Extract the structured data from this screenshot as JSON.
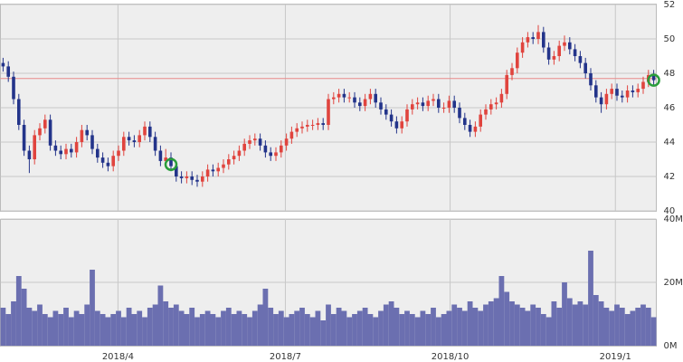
{
  "chart_data": [
    {
      "type": "candlestick",
      "xlim": [
        0,
        125
      ],
      "ylim": [
        40,
        52
      ],
      "yticks": [
        40,
        42,
        44,
        46,
        48,
        50,
        52
      ],
      "grid": true,
      "up_color": "#e0443e",
      "down_color": "#23348a",
      "open": [
        48.6,
        48.4,
        47.8,
        46.5,
        45.0,
        43.5,
        43.0,
        44.4,
        44.8,
        45.3,
        43.8,
        43.5,
        43.3,
        43.6,
        43.4,
        44.0,
        44.7,
        44.4,
        43.6,
        43.1,
        42.8,
        42.6,
        43.2,
        43.5,
        44.3,
        44.1,
        44.0,
        44.4,
        44.9,
        44.3,
        43.5,
        42.9,
        43.1,
        42.6,
        42.0,
        41.9,
        42.0,
        41.8,
        41.7,
        42.0,
        42.4,
        42.3,
        42.5,
        42.7,
        43.0,
        43.2,
        43.5,
        43.9,
        44.1,
        44.2,
        43.8,
        43.4,
        43.2,
        43.4,
        43.8,
        44.2,
        44.6,
        44.8,
        44.9,
        45.0,
        45.0,
        45.1,
        45.0,
        46.5,
        46.6,
        46.8,
        46.6,
        46.6,
        46.3,
        46.1,
        46.5,
        46.8,
        46.3,
        45.9,
        45.6,
        45.2,
        44.8,
        45.2,
        45.9,
        46.2,
        46.3,
        46.1,
        46.4,
        46.5,
        46.0,
        46.0,
        46.4,
        46.0,
        45.4,
        45.0,
        44.6,
        44.9,
        45.6,
        45.9,
        46.2,
        46.3,
        46.8,
        47.9,
        48.3,
        49.2,
        49.8,
        50.1,
        50.0,
        50.4,
        49.5,
        48.8,
        49.0,
        49.6,
        49.8,
        49.4,
        49.0,
        48.6,
        48.0,
        47.3,
        46.6,
        46.2,
        46.8,
        47.1,
        46.7,
        46.6,
        47.0,
        46.9,
        47.1,
        47.5,
        47.9
      ],
      "high": [
        48.9,
        48.7,
        48.1,
        46.8,
        45.3,
        43.8,
        44.7,
        45.1,
        45.6,
        45.6,
        44.1,
        43.8,
        43.9,
        43.9,
        44.3,
        45.0,
        45.0,
        44.7,
        43.9,
        43.4,
        43.1,
        43.5,
        43.8,
        44.6,
        44.6,
        44.4,
        44.7,
        45.2,
        45.2,
        44.6,
        43.8,
        43.6,
        43.4,
        42.9,
        42.3,
        42.3,
        42.3,
        42.1,
        42.3,
        42.7,
        42.7,
        42.8,
        43.0,
        43.3,
        43.5,
        43.8,
        44.2,
        44.4,
        44.5,
        44.5,
        44.1,
        43.7,
        43.7,
        44.1,
        44.5,
        44.9,
        45.1,
        45.2,
        45.3,
        45.3,
        45.4,
        45.4,
        46.8,
        46.9,
        47.1,
        47.1,
        46.9,
        46.9,
        46.6,
        46.8,
        47.1,
        47.1,
        46.6,
        46.2,
        45.9,
        45.5,
        45.5,
        46.2,
        46.5,
        46.6,
        46.6,
        46.7,
        46.8,
        46.8,
        46.3,
        46.7,
        46.7,
        46.3,
        45.7,
        45.3,
        45.2,
        45.9,
        46.2,
        46.5,
        46.6,
        47.1,
        48.2,
        48.6,
        49.5,
        50.1,
        50.4,
        50.4,
        50.8,
        50.7,
        49.8,
        49.3,
        49.9,
        50.2,
        50.1,
        49.7,
        49.3,
        48.9,
        48.3,
        47.6,
        46.9,
        47.1,
        47.4,
        47.4,
        47.0,
        47.3,
        47.3,
        47.4,
        47.8,
        48.2,
        48.2
      ],
      "low": [
        48.1,
        47.5,
        46.2,
        44.7,
        43.2,
        42.2,
        42.7,
        44.1,
        44.5,
        43.5,
        43.2,
        43.0,
        43.0,
        43.1,
        43.1,
        43.7,
        44.1,
        43.3,
        42.8,
        42.5,
        42.3,
        42.3,
        42.9,
        43.2,
        43.8,
        43.7,
        43.7,
        44.1,
        44.0,
        43.2,
        42.6,
        42.6,
        42.3,
        41.7,
        41.6,
        41.6,
        41.5,
        41.4,
        41.4,
        41.7,
        42.0,
        42.0,
        42.2,
        42.4,
        42.7,
        42.9,
        43.2,
        43.6,
        43.8,
        43.5,
        43.1,
        42.9,
        42.9,
        43.1,
        43.5,
        43.9,
        44.3,
        44.5,
        44.6,
        44.7,
        44.7,
        44.7,
        44.7,
        46.2,
        46.3,
        46.3,
        46.3,
        46.0,
        45.8,
        45.8,
        46.2,
        46.0,
        45.6,
        45.3,
        44.9,
        44.5,
        44.5,
        44.9,
        45.6,
        45.9,
        45.8,
        45.8,
        46.1,
        45.7,
        45.7,
        45.7,
        45.7,
        45.1,
        44.7,
        44.3,
        44.3,
        44.6,
        45.3,
        45.6,
        45.9,
        46.0,
        46.5,
        47.6,
        48.0,
        48.9,
        49.5,
        49.7,
        49.7,
        49.2,
        48.5,
        48.5,
        48.7,
        49.3,
        49.1,
        48.7,
        48.3,
        47.7,
        47.0,
        46.3,
        45.7,
        45.9,
        46.5,
        46.4,
        46.3,
        46.3,
        46.6,
        46.6,
        46.8,
        47.2,
        47.3
      ],
      "close": [
        48.4,
        47.8,
        46.5,
        45.0,
        43.5,
        43.0,
        44.4,
        44.8,
        45.3,
        43.8,
        43.5,
        43.3,
        43.6,
        43.4,
        44.0,
        44.7,
        44.4,
        43.6,
        43.1,
        42.8,
        42.6,
        43.2,
        43.5,
        44.3,
        44.1,
        44.0,
        44.4,
        44.9,
        44.3,
        43.5,
        42.9,
        43.1,
        42.6,
        42.0,
        41.9,
        42.0,
        41.8,
        41.7,
        42.0,
        42.4,
        42.3,
        42.5,
        42.7,
        43.0,
        43.2,
        43.5,
        43.9,
        44.1,
        44.2,
        43.8,
        43.4,
        43.2,
        43.4,
        43.8,
        44.2,
        44.6,
        44.8,
        44.9,
        45.0,
        45.0,
        45.1,
        45.0,
        46.5,
        46.6,
        46.8,
        46.6,
        46.6,
        46.3,
        46.1,
        46.5,
        46.8,
        46.3,
        45.9,
        45.6,
        45.2,
        44.8,
        45.2,
        45.9,
        46.2,
        46.3,
        46.1,
        46.4,
        46.5,
        46.0,
        46.0,
        46.4,
        46.0,
        45.4,
        45.0,
        44.6,
        44.9,
        45.6,
        45.9,
        46.2,
        46.3,
        46.8,
        47.9,
        48.3,
        49.2,
        49.8,
        50.1,
        50.0,
        50.4,
        49.5,
        48.8,
        49.0,
        49.6,
        49.8,
        49.4,
        49.0,
        48.6,
        48.0,
        47.3,
        46.6,
        46.2,
        46.8,
        47.1,
        46.7,
        46.6,
        47.0,
        46.9,
        47.1,
        47.5,
        47.9,
        47.6
      ],
      "reference_line": {
        "value": 47.7,
        "color": "#e88a8a"
      },
      "markers": {
        "x": [
          32.5,
          124.5
        ],
        "values": [
          42.7,
          47.6
        ],
        "color": "#2a9d3a"
      }
    },
    {
      "type": "bar",
      "xlim": [
        0,
        125
      ],
      "ylim": [
        0,
        40
      ],
      "yticks": [
        {
          "value": 0,
          "label": "0M"
        },
        {
          "value": 20,
          "label": "20M"
        },
        {
          "value": 40,
          "label": "40M"
        }
      ],
      "xticks": [
        {
          "value": 22.4,
          "label": "2018/4"
        },
        {
          "value": 54.3,
          "label": "2018/7"
        },
        {
          "value": 85.7,
          "label": "2018/10"
        },
        {
          "value": 117.2,
          "label": "2019/1"
        }
      ],
      "grid": true,
      "color": "#6b6fb0",
      "values": [
        12,
        10,
        14,
        22,
        18,
        12,
        11,
        13,
        10,
        9,
        11,
        10,
        12,
        9,
        11,
        10,
        13,
        24,
        11,
        10,
        9,
        10,
        11,
        9,
        12,
        10,
        11,
        9,
        12,
        13,
        19,
        14,
        12,
        13,
        11,
        10,
        12,
        9,
        10,
        11,
        10,
        9,
        11,
        12,
        10,
        11,
        10,
        9,
        11,
        13,
        18,
        12,
        10,
        11,
        9,
        10,
        11,
        12,
        10,
        9,
        11,
        8,
        13,
        10,
        12,
        11,
        9,
        10,
        11,
        12,
        10,
        9,
        11,
        13,
        14,
        12,
        10,
        11,
        10,
        9,
        11,
        10,
        12,
        9,
        10,
        11,
        13,
        12,
        11,
        14,
        12,
        11,
        13,
        14,
        15,
        22,
        17,
        14,
        13,
        12,
        11,
        13,
        12,
        10,
        9,
        14,
        12,
        20,
        15,
        13,
        14,
        13,
        30,
        16,
        14,
        12,
        11,
        13,
        12,
        10,
        11,
        12,
        13,
        12,
        9
      ]
    }
  ]
}
